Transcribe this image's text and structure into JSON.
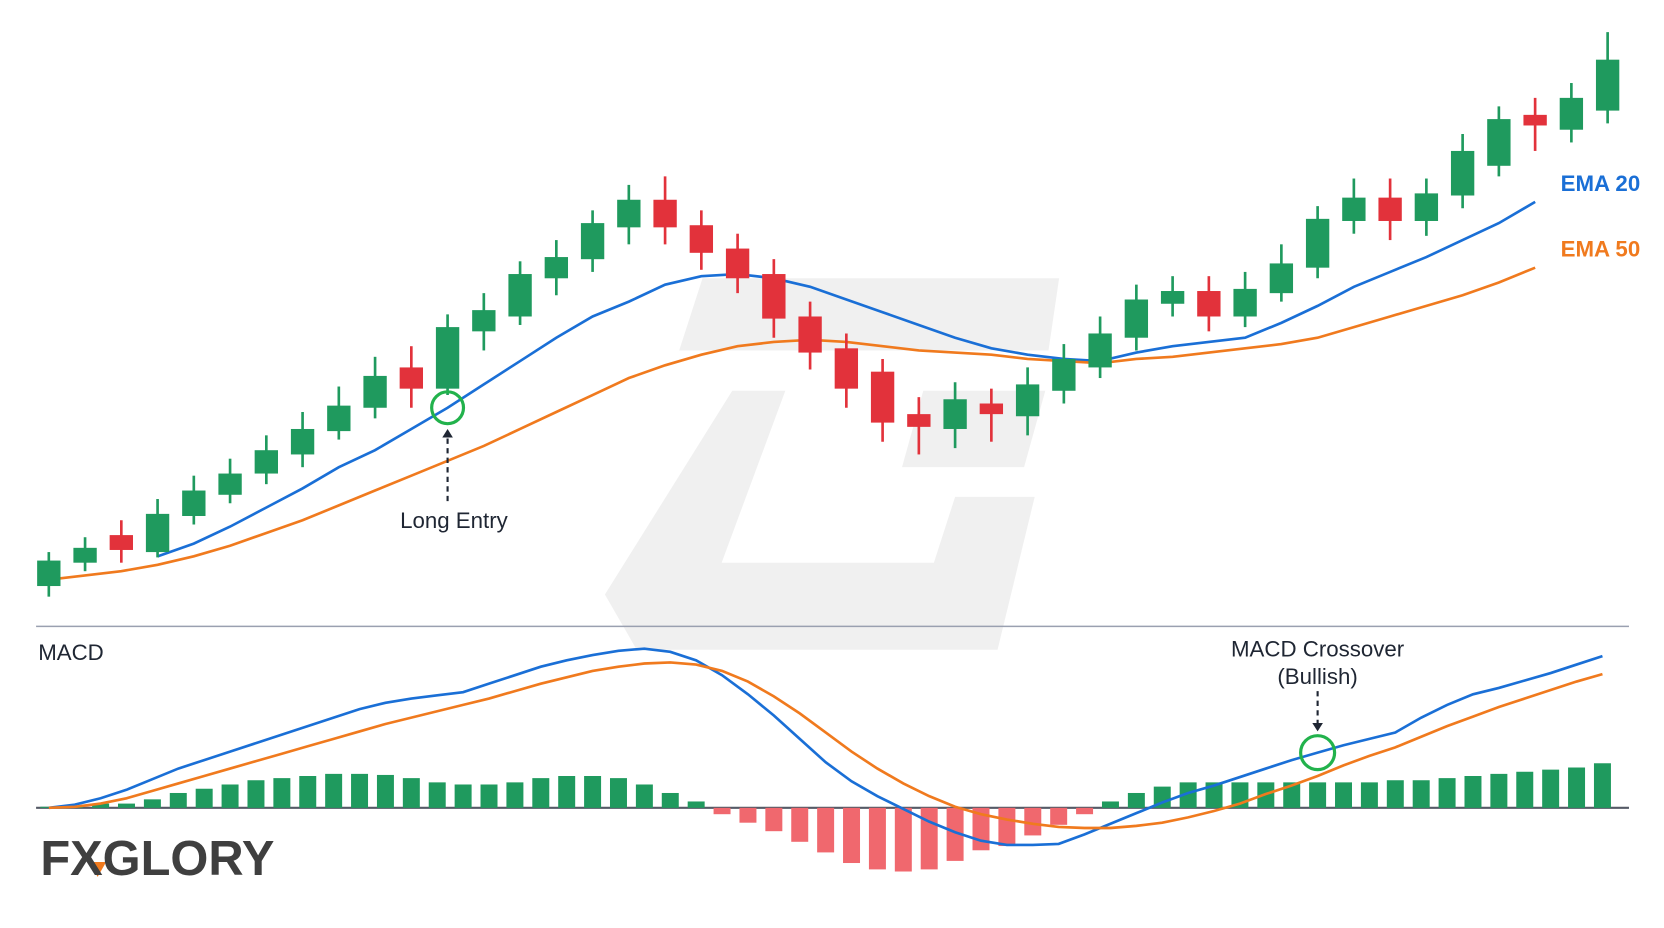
{
  "chart_data": [
    {
      "type": "candlestick",
      "open": [
        48,
        70,
        96,
        80,
        114,
        134,
        154,
        172,
        194,
        216,
        254,
        234,
        288,
        302,
        338,
        356,
        386,
        412,
        388,
        366,
        342,
        302,
        272,
        250,
        210,
        196,
        220,
        208,
        232,
        254,
        282,
        314,
        326,
        302,
        324,
        348,
        392,
        414,
        392,
        416,
        444,
        492,
        478,
        496
      ],
      "high": [
        80,
        94,
        110,
        130,
        152,
        168,
        190,
        212,
        236,
        264,
        274,
        304,
        324,
        354,
        374,
        402,
        426,
        434,
        402,
        380,
        356,
        316,
        286,
        262,
        226,
        240,
        234,
        254,
        276,
        302,
        332,
        340,
        340,
        344,
        370,
        406,
        432,
        432,
        432,
        474,
        500,
        508,
        522,
        570
      ],
      "low": [
        38,
        62,
        70,
        75,
        106,
        126,
        144,
        160,
        186,
        206,
        216,
        228,
        270,
        294,
        322,
        344,
        370,
        370,
        346,
        324,
        282,
        252,
        216,
        184,
        172,
        178,
        184,
        190,
        220,
        244,
        270,
        302,
        288,
        292,
        316,
        338,
        380,
        374,
        378,
        404,
        434,
        458,
        466,
        484
      ],
      "close": [
        72,
        84,
        82,
        116,
        138,
        154,
        176,
        196,
        218,
        246,
        234,
        292,
        308,
        342,
        358,
        390,
        412,
        386,
        362,
        338,
        300,
        268,
        234,
        202,
        198,
        224,
        210,
        238,
        262,
        286,
        318,
        326,
        302,
        328,
        352,
        394,
        414,
        392,
        418,
        458,
        488,
        482,
        508,
        544
      ],
      "up_color": "#1f9a5e",
      "down_color": "#e2323b",
      "series": [
        {
          "name": "EMA 20",
          "color": "#1a6fd6",
          "values": [
            null,
            null,
            null,
            76,
            88,
            104,
            122,
            140,
            160,
            176,
            196,
            216,
            238,
            260,
            282,
            302,
            316,
            332,
            340,
            342,
            338,
            330,
            318,
            306,
            294,
            282,
            272,
            266,
            262,
            260,
            268,
            274,
            278,
            282,
            296,
            312,
            330,
            344,
            358,
            374,
            390,
            410,
            null,
            null
          ]
        },
        {
          "name": "EMA 50",
          "color": "#f07a1e",
          "values": [
            54,
            58,
            62,
            68,
            76,
            86,
            98,
            110,
            124,
            138,
            152,
            166,
            180,
            196,
            212,
            228,
            244,
            256,
            266,
            274,
            278,
            280,
            278,
            274,
            270,
            268,
            266,
            262,
            260,
            258,
            262,
            264,
            268,
            272,
            276,
            282,
            292,
            302,
            312,
            322,
            334,
            348,
            null,
            null
          ]
        }
      ],
      "ylim": [
        0,
        600
      ],
      "annotation": "Long Entry"
    },
    {
      "type": "macd",
      "title": "MACD",
      "histogram": {
        "values": [
          1,
          2,
          4,
          4,
          8,
          14,
          18,
          22,
          26,
          28,
          30,
          32,
          32,
          31,
          28,
          24,
          22,
          22,
          24,
          28,
          30,
          30,
          28,
          22,
          14,
          6,
          -6,
          -14,
          -22,
          -32,
          -42,
          -52,
          -58,
          -60,
          -58,
          -50,
          -40,
          -36,
          -26,
          -16,
          -6,
          6,
          14,
          20,
          24,
          24,
          24,
          24,
          24,
          24,
          24,
          24,
          26,
          26,
          28,
          30,
          32,
          34,
          36,
          38,
          42
        ],
        "up_color": "#1f9a5e",
        "down_color": "#f0686e"
      },
      "series": [
        {
          "color": "#1a6fd6",
          "values": [
            0,
            3,
            9,
            17,
            27,
            37,
            45,
            53,
            61,
            69,
            77,
            85,
            93,
            99,
            103,
            106,
            109,
            117,
            125,
            133,
            139,
            144,
            148,
            150,
            147,
            139,
            125,
            107,
            87,
            65,
            43,
            25,
            11,
            -1,
            -13,
            -23,
            -31,
            -35,
            -35,
            -34,
            -25,
            -15,
            -5,
            5,
            14,
            21,
            29,
            37,
            45,
            52,
            59,
            65,
            71,
            85,
            97,
            107,
            113,
            120,
            127,
            135,
            143
          ]
        },
        {
          "color": "#f07a1e",
          "values": [
            0,
            1,
            4,
            9,
            16,
            23,
            30,
            37,
            44,
            51,
            58,
            65,
            72,
            79,
            85,
            91,
            97,
            103,
            110,
            117,
            123,
            129,
            133,
            136,
            137,
            135,
            129,
            119,
            105,
            89,
            71,
            53,
            37,
            23,
            11,
            1,
            -6,
            -11,
            -15,
            -18,
            -19,
            -19,
            -17,
            -14,
            -9,
            -3,
            4,
            13,
            21,
            30,
            40,
            49,
            57,
            67,
            77,
            86,
            95,
            103,
            111,
            119,
            126
          ]
        }
      ],
      "ylim": [
        -80,
        170
      ],
      "annotation": [
        "MACD Crossover",
        "(Bullish)"
      ]
    }
  ],
  "logo": "FXGLORY"
}
